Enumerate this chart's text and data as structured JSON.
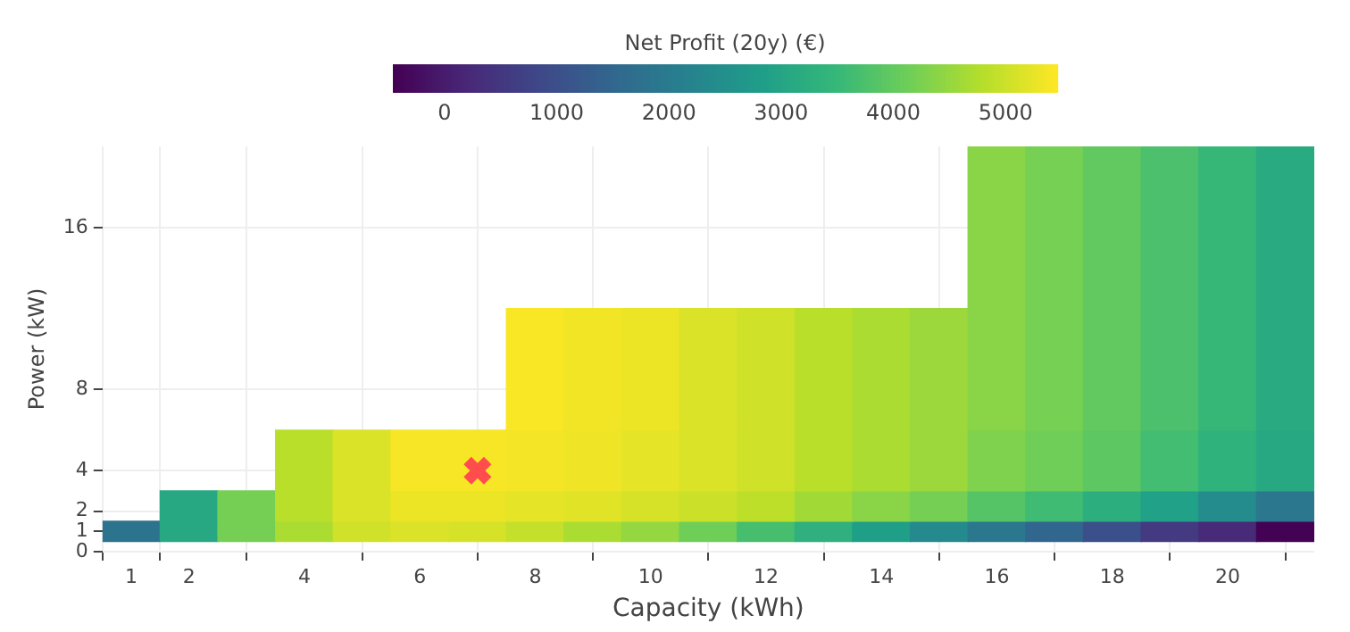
{
  "chart_data": {
    "type": "heatmap",
    "xlabel": "Capacity (kWh)",
    "ylabel": "Power (kW)",
    "clabel": "Net Profit (20y) (€)",
    "x": [
      1,
      2,
      3,
      4,
      5,
      6,
      7,
      8,
      9,
      10,
      11,
      12,
      13,
      14,
      15,
      16,
      17,
      18,
      19,
      20,
      21
    ],
    "y": [
      16,
      8,
      4,
      2,
      1
    ],
    "cells": [
      [
        null,
        null,
        null,
        null,
        null,
        null,
        null,
        null,
        null,
        null,
        null,
        null,
        null,
        null,
        null,
        4400,
        4220,
        4000,
        3750,
        3500,
        3150
      ],
      [
        null,
        null,
        null,
        null,
        null,
        null,
        null,
        5420,
        5350,
        5300,
        5150,
        5050,
        4850,
        4700,
        4570,
        4400,
        4220,
        3990,
        3750,
        3500,
        3150
      ],
      [
        null,
        null,
        null,
        4850,
        5150,
        5400,
        5400,
        5380,
        5330,
        5250,
        5150,
        5050,
        4850,
        4700,
        4570,
        4300,
        4150,
        3950,
        3650,
        3350,
        3100
      ],
      [
        null,
        3100,
        4200,
        4850,
        5150,
        5300,
        5300,
        5250,
        5200,
        5100,
        5000,
        4880,
        4620,
        4400,
        4200,
        3850,
        3600,
        3250,
        2900,
        2400,
        1900
      ],
      [
        1800,
        3100,
        4200,
        4700,
        5050,
        5150,
        5100,
        4950,
        4700,
        4500,
        4150,
        3700,
        3300,
        2850,
        2350,
        1900,
        1500,
        1000,
        550,
        250,
        -450
      ]
    ],
    "clim": [
      -460,
      5460
    ],
    "cticks": [
      0,
      1000,
      2000,
      3000,
      4000,
      5000
    ],
    "xlim": [
      0.5,
      21.5
    ],
    "xticks": [
      1,
      2,
      4,
      6,
      8,
      10,
      12,
      14,
      16,
      18,
      20
    ],
    "ylim": [
      0,
      20
    ],
    "yticks": [
      0,
      1,
      2,
      4,
      8,
      16
    ],
    "grid": true,
    "series": [
      {
        "type": "scatter",
        "x": [
          7
        ],
        "values": [
          4
        ],
        "color": "#ff4d4d",
        "marker": "cross"
      }
    ]
  }
}
